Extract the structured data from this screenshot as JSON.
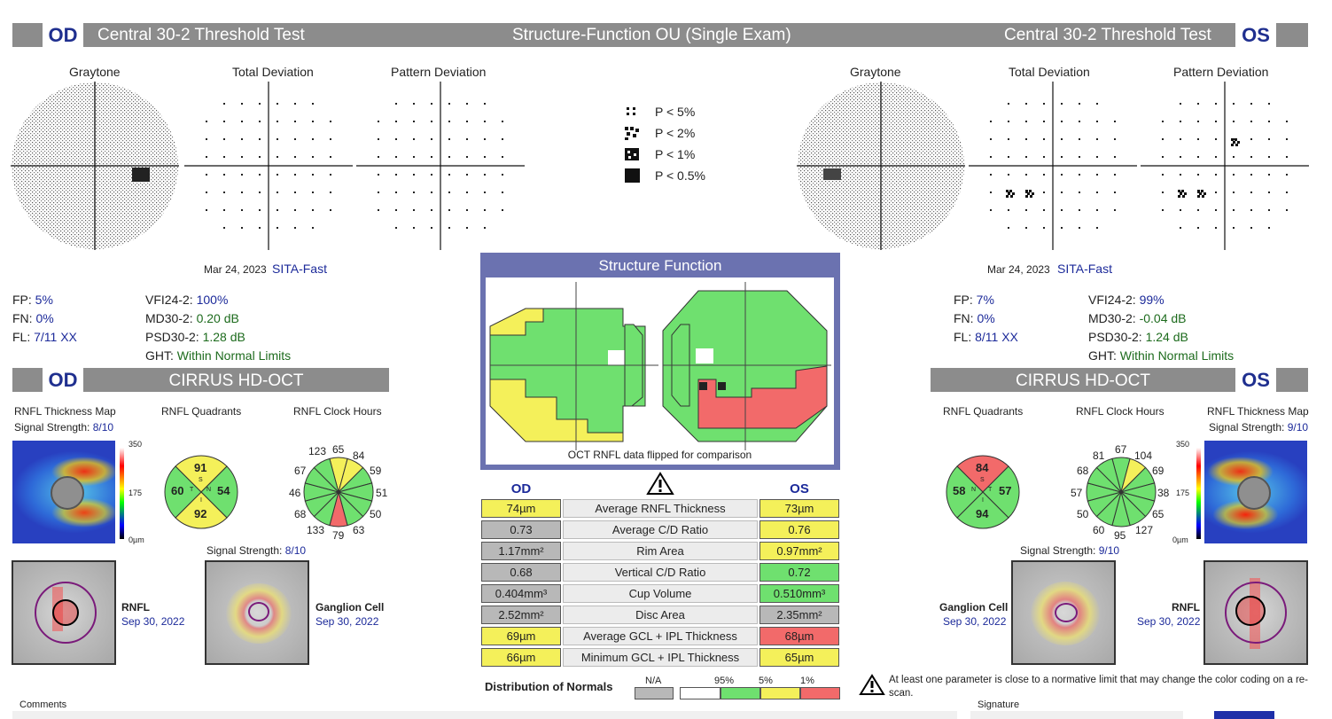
{
  "header": {
    "od_eye": "OD",
    "od_test": "Central 30-2 Threshold Test",
    "title": "Structure-Function OU (Single Exam)",
    "os_test": "Central 30-2 Threshold Test",
    "os_eye": "OS"
  },
  "vf_labels": {
    "graytone": "Graytone",
    "total_deviation": "Total Deviation",
    "pattern_deviation": "Pattern Deviation"
  },
  "legend": [
    {
      "label": "P < 5%"
    },
    {
      "label": "P < 2%"
    },
    {
      "label": "P < 1%"
    },
    {
      "label": "P < 0.5%"
    }
  ],
  "od_exam": {
    "date": "Mar 24, 2023",
    "strategy": "SITA-Fast",
    "fp_label": "FP:",
    "fp": "5%",
    "fn_label": "FN:",
    "fn": "0%",
    "fl_label": "FL:",
    "fl": "7/11 XX",
    "vfi_label": "VFI24-2:",
    "vfi": "100%",
    "md_label": "MD30-2:",
    "md": "0.20 dB",
    "psd_label": "PSD30-2:",
    "psd": "1.28 dB",
    "ght_label": "GHT:",
    "ght": "Within Normal Limits"
  },
  "os_exam": {
    "date": "Mar 24, 2023",
    "strategy": "SITA-Fast",
    "fp_label": "FP:",
    "fp": "7%",
    "fn_label": "FN:",
    "fn": "0%",
    "fl_label": "FL:",
    "fl": "8/11 XX",
    "vfi_label": "VFI24-2:",
    "vfi": "99%",
    "md_label": "MD30-2:",
    "md": "-0.04 dB",
    "psd_label": "PSD30-2:",
    "psd": "1.24 dB",
    "ght_label": "GHT:",
    "ght": "Within Normal Limits"
  },
  "structure_function": {
    "title": "Structure Function",
    "note": "OCT RNFL data flipped for comparison"
  },
  "oct": {
    "od_eye": "OD",
    "os_eye": "OS",
    "title": "CIRRUS HD-OCT",
    "rnfl_thickness_map": "RNFL Thickness Map",
    "rnfl_quadrants": "RNFL Quadrants",
    "rnfl_clock_hours": "RNFL Clock Hours",
    "signal_label": "Signal Strength:",
    "scale_max": "350",
    "scale_mid": "175",
    "scale_min": "0µm",
    "rnfl_label": "RNFL",
    "gc_label": "Ganglion Cell",
    "od": {
      "signal": "8/10",
      "gc_signal": "8/10",
      "scan_date": "Sep 30, 2022",
      "quadrants": {
        "S": "91",
        "T": "60",
        "N": "54",
        "I": "92",
        "s_letter": "S",
        "t_letter": "T",
        "n_letter": "N",
        "i_letter": "I"
      },
      "clock": [
        "65",
        "84",
        "59",
        "51",
        "50",
        "63",
        "79",
        "133",
        "68",
        "46",
        "67",
        "123"
      ]
    },
    "os": {
      "signal": "9/10",
      "gc_signal": "9/10",
      "scan_date": "Sep 30, 2022",
      "quadrants": {
        "S": "84",
        "T": "57",
        "N": "58",
        "I": "94",
        "s_letter": "S",
        "t_letter": "T",
        "n_letter": "N",
        "i_letter": "I"
      },
      "clock": [
        "67",
        "104",
        "69",
        "38",
        "65",
        "127",
        "95",
        "60",
        "50",
        "57",
        "68",
        "81"
      ]
    }
  },
  "table": {
    "od_header": "OD",
    "os_header": "OS",
    "warning_icon": "warning-icon",
    "rows": [
      {
        "od": "74µm",
        "label": "Average RNFL Thickness",
        "os": "73µm",
        "od_c": "#f4f05a",
        "os_c": "#f4f05a"
      },
      {
        "od": "0.73",
        "label": "Average C/D Ratio",
        "os": "0.76",
        "od_c": "#b8b8b8",
        "os_c": "#f4f05a"
      },
      {
        "od": "1.17mm²",
        "label": "Rim Area",
        "os": "0.97mm²",
        "od_c": "#b8b8b8",
        "os_c": "#f4f05a"
      },
      {
        "od": "0.68",
        "label": "Vertical C/D Ratio",
        "os": "0.72",
        "od_c": "#b8b8b8",
        "os_c": "#6fe06f"
      },
      {
        "od": "0.404mm³",
        "label": "Cup Volume",
        "os": "0.510mm³",
        "od_c": "#b8b8b8",
        "os_c": "#6fe06f"
      },
      {
        "od": "2.52mm²",
        "label": "Disc Area",
        "os": "2.35mm²",
        "od_c": "#b8b8b8",
        "os_c": "#b8b8b8"
      },
      {
        "od": "69µm",
        "label": "Average GCL + IPL Thickness",
        "os": "68µm",
        "od_c": "#f4f05a",
        "os_c": "#f26a6a"
      },
      {
        "od": "66µm",
        "label": "Minimum GCL + IPL Thickness",
        "os": "65µm",
        "od_c": "#f4f05a",
        "os_c": "#f4f05a"
      }
    ]
  },
  "distribution": {
    "label": "Distribution of Normals",
    "na": "N/A",
    "p95": "95%",
    "p5": "5%",
    "p1": "1%"
  },
  "footnote": "At least one parameter is close to a normative limit that may change the color coding on a re-scan.",
  "footer": {
    "comments": "Comments",
    "signature": "Signature"
  },
  "colors": {
    "yellow": "#f4f05a",
    "green": "#6fe06f",
    "red": "#f26a6a",
    "gray": "#b8b8b8",
    "navy": "#1c2a9a",
    "frame": "#6b72b0"
  }
}
